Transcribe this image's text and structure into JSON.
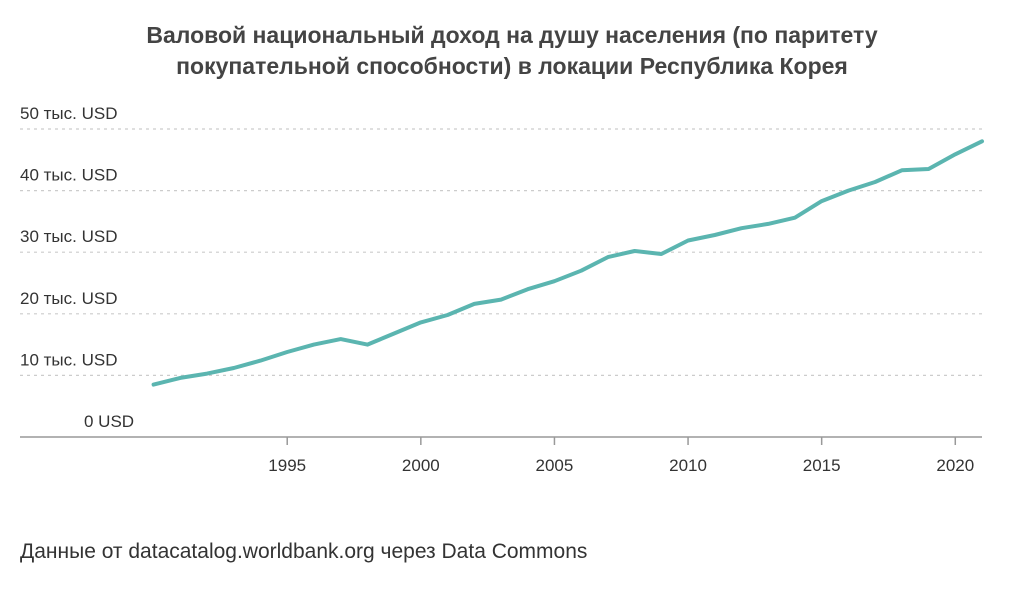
{
  "chart_data": {
    "type": "line",
    "title_lines": [
      "Валовой национальный доход на душу населения (по паритету",
      "покупательной способности) в локации Республика Корея"
    ],
    "xlabel": "",
    "ylabel": "",
    "x_ticks": [
      1995,
      2000,
      2005,
      2010,
      2015,
      2020
    ],
    "y_ticks": [
      0,
      10000,
      20000,
      30000,
      40000,
      50000
    ],
    "y_tick_labels": [
      "0 USD",
      "10 тыс. USD",
      "20 тыс. USD",
      "30 тыс. USD",
      "40 тыс. USD",
      "50 тыс. USD"
    ],
    "xlim": [
      1985,
      2021
    ],
    "ylim": [
      0,
      50000
    ],
    "grid": "horizontal-dashed",
    "legend": "none",
    "color": "#5bb5b0",
    "series": [
      {
        "x": [
          1990,
          1991,
          1992,
          1993,
          1994,
          1995,
          1996,
          1997,
          1998,
          1999,
          2000,
          2001,
          2002,
          2003,
          2004,
          2005,
          2006,
          2007,
          2008,
          2009,
          2010,
          2011,
          2012,
          2013,
          2014,
          2015,
          2016,
          2017,
          2018,
          2019,
          2020,
          2021
        ],
        "values": [
          8500,
          9600,
          10300,
          11200,
          12400,
          13800,
          15000,
          15900,
          15000,
          16800,
          18600,
          19800,
          21600,
          22300,
          24000,
          25300,
          27000,
          29200,
          30200,
          29700,
          31900,
          32800,
          33900,
          34600,
          35600,
          38300,
          40000,
          41400,
          43300,
          43500,
          45900,
          48000
        ]
      }
    ]
  },
  "footer": {
    "source": "Данные от datacatalog.worldbank.org через Data Commons"
  }
}
